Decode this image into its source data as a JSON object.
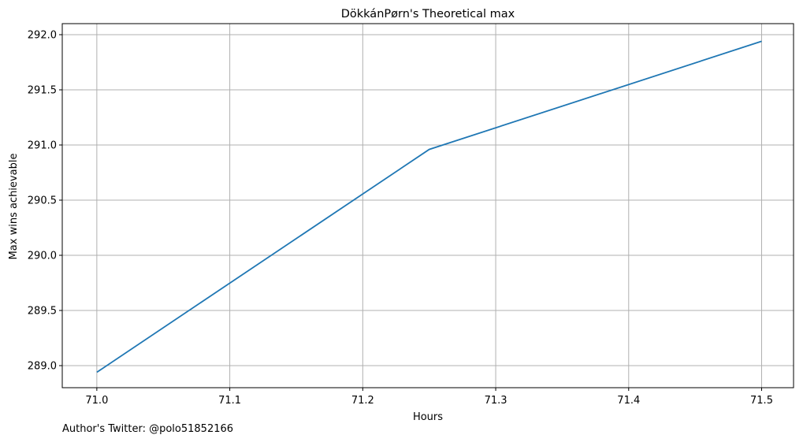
{
  "chart_data": {
    "type": "line",
    "title": "DökkánPørn's Theoretical max",
    "xlabel": "Hours",
    "ylabel": "Max wins achievable",
    "xlim": [
      70.974,
      71.524
    ],
    "ylim": [
      288.8,
      292.1
    ],
    "x_ticks": [
      71.0,
      71.1,
      71.2,
      71.3,
      71.4,
      71.5
    ],
    "x_tick_labels": [
      "71.0",
      "71.1",
      "71.2",
      "71.3",
      "71.4",
      "71.5"
    ],
    "y_ticks": [
      289.0,
      289.5,
      290.0,
      290.5,
      291.0,
      291.5,
      292.0
    ],
    "y_tick_labels": [
      "289.0",
      "289.5",
      "290.0",
      "290.5",
      "291.0",
      "291.5",
      "292.0"
    ],
    "grid": true,
    "series": [
      {
        "color": "#1f77b4",
        "x": [
          71.0,
          71.25,
          71.5
        ],
        "y": [
          288.94,
          290.96,
          291.94
        ]
      }
    ]
  },
  "footer": {
    "text": "Author's Twitter: @polo51852166"
  }
}
